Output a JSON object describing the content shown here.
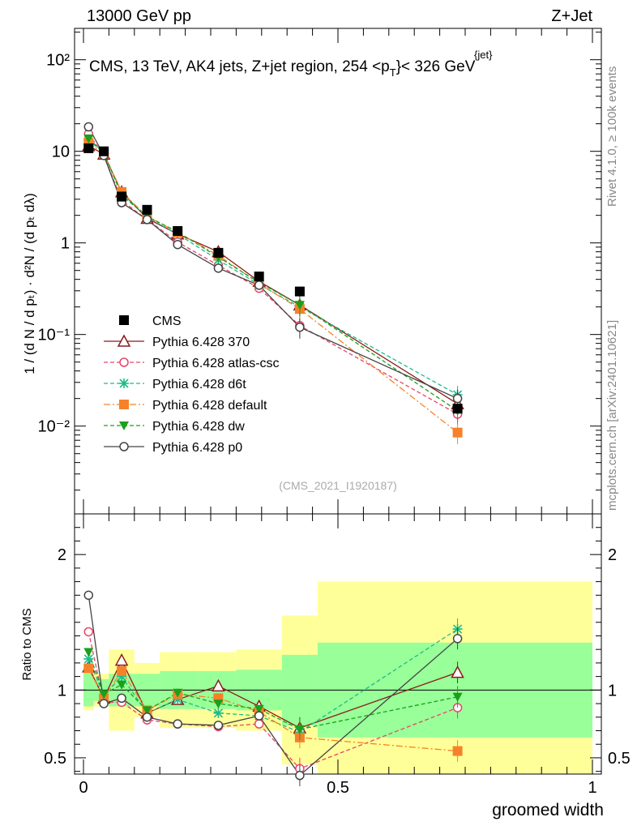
{
  "header": {
    "left": "13000 GeV pp",
    "right": "Z+Jet",
    "title_main": "CMS, 13 TeV, AK4 jets, Z+jet region, 254 <p",
    "title_sup": "{jet}",
    "title_sub": "T",
    "title_end": "}< 326 GeV",
    "side_rivet": "Rivet 4.1.0, ≥ 100k events",
    "side_mcplots": "mcplots.cern.ch [arXiv:2401.10621]",
    "analysis": "(CMS_2021_I1920187)"
  },
  "axes": {
    "ylabel_top": "1 / (d N / d pₜ) · d²N / (d pₜ dλ)",
    "ylabel_ratio": "Ratio to CMS",
    "xlabel": "groomed width",
    "x_ticks": [
      "0",
      "0.5",
      "1"
    ],
    "y_ticks_top": [
      "10⁻²",
      "10⁻¹",
      "1",
      "10",
      "10²"
    ],
    "y_ticks_ratio": [
      "0.5",
      "1",
      "2"
    ]
  },
  "chart_data": {
    "type": "scatter",
    "x_range": [
      0,
      1
    ],
    "y_range_top": [
      0.0011,
      220
    ],
    "y_range_ratio": [
      0.38,
      2.3
    ],
    "x": [
      0.01,
      0.04,
      0.075,
      0.125,
      0.185,
      0.265,
      0.345,
      0.425,
      0.735
    ],
    "bin_edges": [
      0,
      0.02,
      0.05,
      0.1,
      0.15,
      0.225,
      0.3,
      0.39,
      0.46,
      1.0
    ],
    "data": {
      "name": "CMS",
      "values": [
        10.8,
        10.0,
        3.2,
        2.3,
        1.35,
        0.78,
        0.43,
        0.295,
        0.0155
      ],
      "band_inner": [
        0.12,
        0.08,
        0.12,
        0.12,
        0.14,
        0.14,
        0.15,
        0.26,
        0.35
      ],
      "band_outer": [
        0.15,
        0.12,
        0.3,
        0.2,
        0.28,
        0.28,
        0.3,
        0.55,
        0.8
      ]
    },
    "series": [
      {
        "name": "Pythia 6.428 370",
        "color": "#8b1a1a",
        "dash": "",
        "marker": "triangle-open",
        "values": [
          11.5,
          9.3,
          3.6,
          1.85,
          1.25,
          0.8,
          0.38,
          0.21,
          0.0175
        ],
        "ratio": [
          1.17,
          0.94,
          1.22,
          0.83,
          0.93,
          1.03,
          0.88,
          0.72,
          1.13
        ]
      },
      {
        "name": "Pythia 6.428 atlas-csc",
        "color": "#e8446a",
        "dash": "5,3",
        "marker": "circle-open",
        "values": [
          15.5,
          9.1,
          2.9,
          1.8,
          1.02,
          0.57,
          0.32,
          0.125,
          0.0135
        ],
        "ratio": [
          1.43,
          0.91,
          0.91,
          0.78,
          0.75,
          0.73,
          0.75,
          0.42,
          0.87
        ]
      },
      {
        "name": "Pythia 6.428 d6t",
        "color": "#1dbb8a",
        "dash": "5,3",
        "marker": "star",
        "values": [
          13.3,
          9.6,
          3.5,
          1.9,
          1.25,
          0.65,
          0.35,
          0.2,
          0.022
        ],
        "ratio": [
          1.23,
          0.96,
          1.1,
          0.83,
          0.93,
          0.83,
          0.81,
          0.69,
          1.45
        ]
      },
      {
        "name": "Pythia 6.428 default",
        "color": "#f5822a",
        "dash": "8,3,2,3",
        "marker": "square",
        "values": [
          12.5,
          9.4,
          3.6,
          1.95,
          1.3,
          0.73,
          0.36,
          0.19,
          0.0085
        ],
        "ratio": [
          1.16,
          0.94,
          1.14,
          0.85,
          0.97,
          0.94,
          0.84,
          0.65,
          0.55
        ]
      },
      {
        "name": "Pythia 6.428 dw",
        "color": "#1aa01a",
        "dash": "5,3",
        "marker": "triangle-down",
        "values": [
          13.8,
          9.7,
          3.3,
          1.95,
          1.32,
          0.7,
          0.37,
          0.21,
          0.0147
        ],
        "ratio": [
          1.28,
          0.97,
          1.04,
          0.85,
          0.98,
          0.9,
          0.86,
          0.71,
          0.95
        ]
      },
      {
        "name": "Pythia 6.428 p0",
        "color": "#444444",
        "dash": "",
        "marker": "circle-open",
        "values": [
          18.5,
          9.0,
          2.75,
          1.8,
          0.96,
          0.53,
          0.345,
          0.12,
          0.02
        ],
        "ratio": [
          1.7,
          0.9,
          0.94,
          0.8,
          0.75,
          0.74,
          0.81,
          0.37,
          1.38
        ]
      }
    ]
  }
}
